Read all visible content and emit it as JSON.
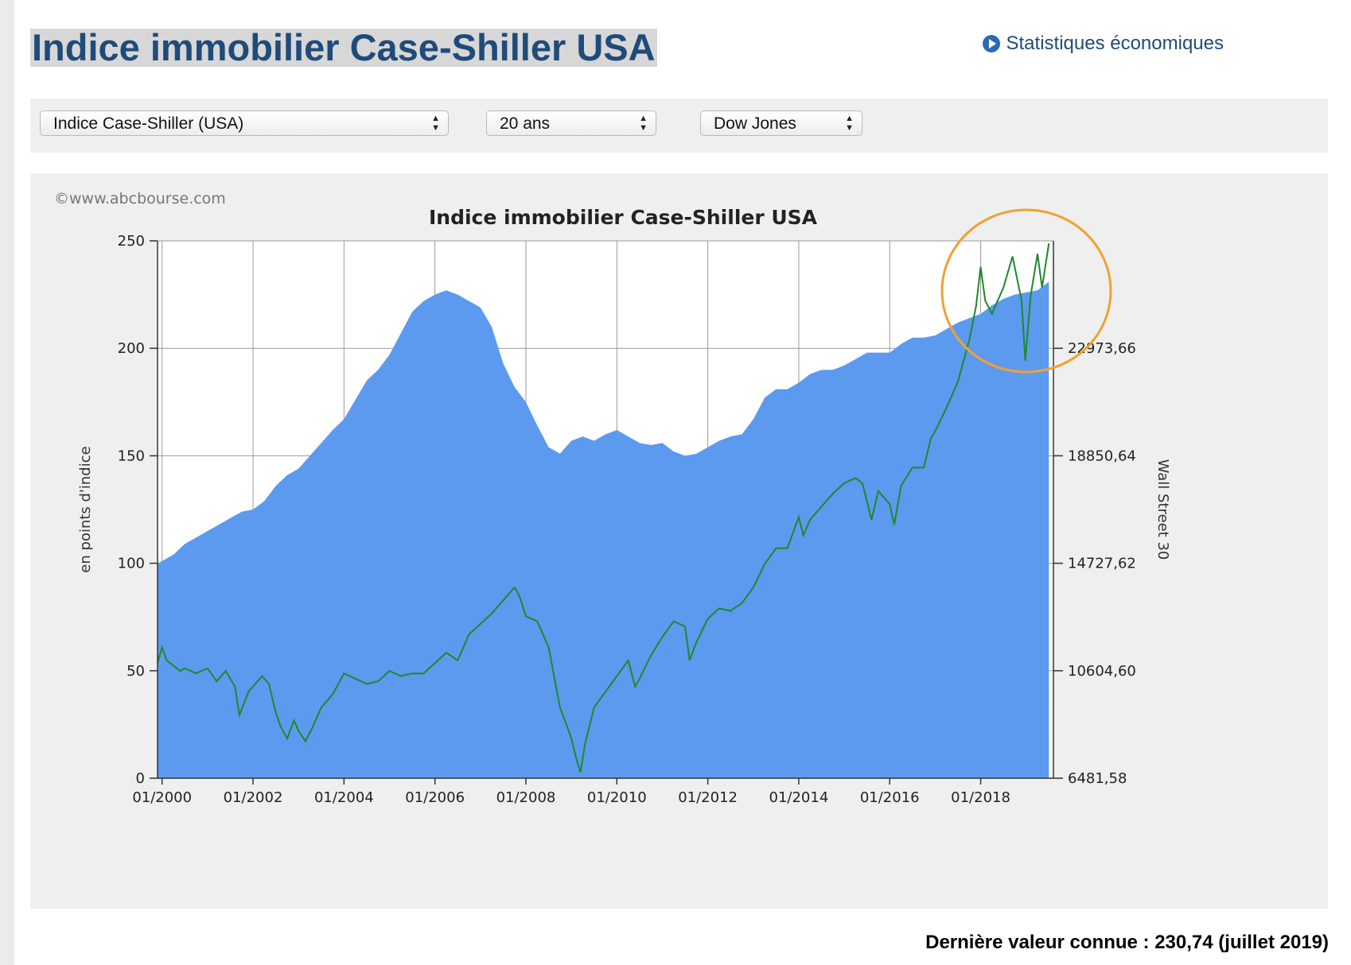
{
  "page": {
    "title": "Indice immobilier Case-Shiller USA",
    "stats_link": "Statistiques économiques",
    "last_value": "Dernière valeur connue : 230,74 (juillet 2019)"
  },
  "controls": {
    "index_select": "Indice Case-Shiller (USA)",
    "period_select": "20 ans",
    "compare_select": "Dow Jones"
  },
  "colors": {
    "title_text": "#1f4b7a",
    "area_fill": "#5c9aef",
    "dow_line": "#1d8a2a",
    "highlight_circle": "#f0a133"
  },
  "chart_data": {
    "type": "area",
    "title": "Indice immobilier Case-Shiller USA",
    "watermark": "©www.abcbourse.com",
    "ylabel": "en points d'indice",
    "y2label": "Wall Street 30",
    "ylim": [
      0,
      250
    ],
    "y2lim": [
      6481.58,
      27096.68
    ],
    "y_ticks": [
      "0",
      "50",
      "100",
      "150",
      "200",
      "250"
    ],
    "y2_ticks": [
      "6481,58",
      "10604,60",
      "14727,62",
      "18850,64",
      "22973,66"
    ],
    "x_ticks": [
      "01/2000",
      "01/2002",
      "01/2004",
      "01/2006",
      "01/2008",
      "01/2010",
      "01/2012",
      "01/2014",
      "01/2016",
      "01/2018"
    ],
    "xlim": [
      1999.9,
      2019.6
    ],
    "grid": true,
    "annotation": "orange circle highlighting 2018-2019 Dow Jones peaks",
    "series": [
      {
        "name": "Indice Case-Shiller (USA)",
        "axis": "left",
        "style": "area",
        "x": [
          1999.9,
          2000.0,
          2000.25,
          2000.5,
          2000.75,
          2001.0,
          2001.25,
          2001.5,
          2001.75,
          2002.0,
          2002.25,
          2002.5,
          2002.75,
          2003.0,
          2003.25,
          2003.5,
          2003.75,
          2004.0,
          2004.25,
          2004.5,
          2004.75,
          2005.0,
          2005.25,
          2005.5,
          2005.75,
          2006.0,
          2006.25,
          2006.5,
          2006.75,
          2007.0,
          2007.25,
          2007.5,
          2007.75,
          2008.0,
          2008.25,
          2008.5,
          2008.75,
          2009.0,
          2009.25,
          2009.5,
          2009.75,
          2010.0,
          2010.25,
          2010.5,
          2010.75,
          2011.0,
          2011.25,
          2011.5,
          2011.75,
          2012.0,
          2012.25,
          2012.5,
          2012.75,
          2013.0,
          2013.25,
          2013.5,
          2013.75,
          2014.0,
          2014.25,
          2014.5,
          2014.75,
          2015.0,
          2015.25,
          2015.5,
          2015.75,
          2016.0,
          2016.25,
          2016.5,
          2016.75,
          2017.0,
          2017.25,
          2017.5,
          2017.75,
          2018.0,
          2018.25,
          2018.5,
          2018.75,
          2019.0,
          2019.25,
          2019.5
        ],
        "values": [
          100,
          101,
          104,
          109,
          112,
          115,
          118,
          121,
          124,
          125,
          129,
          136,
          141,
          144,
          150,
          156,
          162,
          167,
          176,
          185,
          190,
          197,
          207,
          217,
          222,
          225,
          227,
          225,
          222,
          219,
          210,
          193,
          182,
          175,
          164,
          154,
          151,
          157,
          159,
          157,
          160,
          162,
          159,
          156,
          155,
          156,
          152,
          150,
          151,
          154,
          157,
          159,
          160,
          167,
          177,
          181,
          181,
          184,
          188,
          190,
          190,
          192,
          195,
          198,
          198,
          198,
          202,
          205,
          205,
          206,
          209,
          212,
          214,
          216,
          220,
          223,
          225,
          226,
          227,
          231
        ]
      },
      {
        "name": "Dow Jones",
        "axis": "right",
        "style": "line",
        "x": [
          1999.9,
          2000.0,
          2000.1,
          2000.25,
          2000.4,
          2000.5,
          2000.75,
          2001.0,
          2001.2,
          2001.4,
          2001.6,
          2001.7,
          2001.9,
          2002.0,
          2002.2,
          2002.35,
          2002.5,
          2002.6,
          2002.75,
          2002.9,
          2003.0,
          2003.15,
          2003.3,
          2003.5,
          2003.75,
          2004.0,
          2004.25,
          2004.5,
          2004.75,
          2005.0,
          2005.25,
          2005.5,
          2005.75,
          2006.0,
          2006.25,
          2006.5,
          2006.75,
          2007.0,
          2007.25,
          2007.5,
          2007.75,
          2007.85,
          2008.0,
          2008.25,
          2008.5,
          2008.75,
          2008.9,
          2009.0,
          2009.1,
          2009.2,
          2009.3,
          2009.5,
          2009.75,
          2010.0,
          2010.25,
          2010.4,
          2010.5,
          2010.75,
          2011.0,
          2011.25,
          2011.5,
          2011.6,
          2011.75,
          2012.0,
          2012.25,
          2012.5,
          2012.75,
          2013.0,
          2013.25,
          2013.5,
          2013.75,
          2014.0,
          2014.1,
          2014.25,
          2014.5,
          2014.75,
          2015.0,
          2015.25,
          2015.4,
          2015.6,
          2015.75,
          2016.0,
          2016.1,
          2016.25,
          2016.5,
          2016.75,
          2016.9,
          2017.0,
          2017.25,
          2017.5,
          2017.75,
          2017.9,
          2018.0,
          2018.1,
          2018.25,
          2018.5,
          2018.7,
          2018.9,
          2018.98,
          2019.1,
          2019.25,
          2019.35,
          2019.5
        ],
        "values": [
          10900,
          11500,
          11000,
          10800,
          10600,
          10700,
          10500,
          10700,
          10200,
          10600,
          10000,
          8900,
          9800,
          10000,
          10400,
          10100,
          9000,
          8500,
          8000,
          8700,
          8300,
          7900,
          8400,
          9200,
          9700,
          10500,
          10300,
          10100,
          10200,
          10600,
          10400,
          10500,
          10500,
          10900,
          11300,
          11000,
          12000,
          12400,
          12800,
          13300,
          13800,
          13500,
          12700,
          12500,
          11500,
          9200,
          8500,
          8000,
          7300,
          6700,
          7800,
          9200,
          9800,
          10400,
          11000,
          10000,
          10300,
          11200,
          11900,
          12500,
          12300,
          11000,
          11700,
          12600,
          13000,
          12900,
          13200,
          13800,
          14700,
          15300,
          15300,
          16500,
          15800,
          16400,
          16900,
          17400,
          17800,
          18000,
          17800,
          16400,
          17500,
          17000,
          16200,
          17700,
          18400,
          18400,
          19500,
          19800,
          20700,
          21700,
          23300,
          24600,
          26100,
          24800,
          24300,
          25300,
          26500,
          24800,
          22500,
          25000,
          26600,
          25300,
          27000
        ]
      }
    ]
  }
}
